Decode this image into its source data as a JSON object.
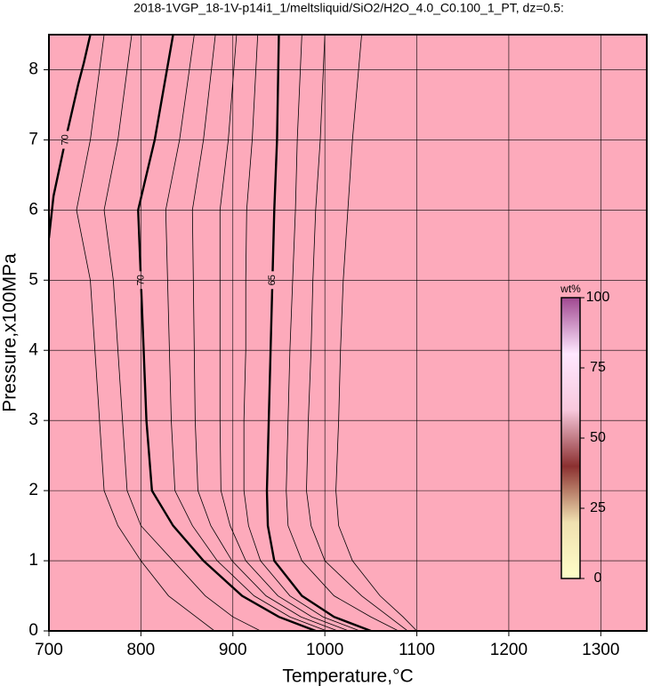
{
  "chart_data": {
    "type": "contour",
    "title": "2018-1VGP_18-1V-p14i1_1/meltsliquid/SiO2/H2O_4.0_C0.100_1_PT, dz=0.5:",
    "x_label": "Temperature,°C",
    "y_label": "Pressure,x100MPa",
    "xlim": [
      700,
      1350
    ],
    "xticks": [
      700,
      800,
      900,
      1000,
      1100,
      1200,
      1300
    ],
    "ylim": [
      0,
      8.5
    ],
    "yticks": [
      0,
      1,
      2,
      3,
      4,
      5,
      6,
      7,
      8
    ],
    "grid": true,
    "background": "#fdaabb",
    "contours": [
      {
        "level": 70,
        "bold": true,
        "x": [
          835,
          815,
          797,
          800,
          803,
          806,
          812,
          835,
          868,
          910,
          950,
          990
        ],
        "y": [
          8.5,
          7,
          6,
          5,
          4,
          3,
          2,
          1.5,
          1,
          0.5,
          0.2,
          0
        ]
      },
      {
        "x": [
          858,
          842,
          827,
          829,
          831,
          833,
          837,
          856,
          883,
          923,
          962,
          1002
        ],
        "y": [
          8.5,
          7,
          6,
          5,
          4,
          3,
          2,
          1.5,
          1,
          0.5,
          0.2,
          0
        ]
      },
      {
        "x": [
          881,
          868,
          856,
          857,
          858,
          859,
          862,
          876,
          899,
          936,
          974,
          1014
        ],
        "y": [
          8.5,
          7,
          6,
          5,
          4,
          3,
          2,
          1.5,
          1,
          0.5,
          0.2,
          0
        ]
      },
      {
        "x": [
          904,
          895,
          886,
          886,
          886,
          886,
          887,
          897,
          914,
          949,
          986,
          1026
        ],
        "y": [
          8.5,
          7,
          6,
          5,
          4,
          3,
          2,
          1.5,
          1,
          0.5,
          0.2,
          0
        ]
      },
      {
        "x": [
          927,
          921,
          915,
          914,
          914,
          912,
          912,
          917,
          930,
          962,
          998,
          1038
        ],
        "y": [
          8.5,
          7,
          6,
          5,
          4,
          3,
          2,
          1.5,
          1,
          0.5,
          0.2,
          0
        ]
      },
      {
        "level": 65,
        "bold": true,
        "x": [
          950,
          948,
          945,
          943,
          941,
          939,
          937,
          938,
          945,
          975,
          1010,
          1050
        ],
        "y": [
          8.5,
          7,
          6,
          5,
          4,
          3,
          2,
          1.5,
          1,
          0.5,
          0.2,
          0
        ]
      },
      {
        "x": [
          975,
          970,
          968,
          965,
          962,
          960,
          958,
          960,
          975,
          1010,
          1050,
          1080
        ],
        "y": [
          8.5,
          7,
          6,
          5,
          4,
          3,
          2,
          1.5,
          1,
          0.5,
          0.2,
          0
        ]
      },
      {
        "x": [
          1000,
          995,
          990,
          987,
          985,
          982,
          980,
          985,
          1000,
          1040,
          1070,
          1090
        ],
        "y": [
          8.5,
          7,
          6,
          5,
          4,
          3,
          2,
          1.5,
          1,
          0.5,
          0.2,
          0
        ]
      },
      {
        "x": [
          1040,
          1030,
          1025,
          1020,
          1017,
          1015,
          1012,
          1015,
          1030,
          1060,
          1085,
          1100
        ],
        "y": [
          8.5,
          7,
          6,
          5,
          4,
          3,
          2,
          1.5,
          1,
          0.5,
          0.2,
          0
        ]
      },
      {
        "x": [
          790,
          775,
          760,
          770,
          775,
          780,
          785,
          800,
          835,
          870,
          900,
          930
        ],
        "y": [
          8.5,
          7,
          6,
          5,
          4,
          3,
          2,
          1.5,
          1,
          0.5,
          0.2,
          0
        ]
      },
      {
        "x": [
          760,
          745,
          730,
          745,
          750,
          755,
          760,
          775,
          800,
          830,
          860,
          880
        ],
        "y": [
          8.5,
          7,
          6,
          5,
          4,
          3,
          2,
          1.5,
          1,
          0.5,
          0.2,
          0
        ]
      },
      {
        "level": 70,
        "bold": true,
        "x": [
          745,
          738,
          732,
          718,
          705,
          700
        ],
        "y": [
          8.5,
          8.1,
          7.8,
          7,
          6.2,
          5.6
        ]
      }
    ],
    "colorbar": {
      "title": "wt%",
      "lim": [
        0,
        100
      ],
      "ticks": [
        0,
        25,
        50,
        75,
        100
      ],
      "colors": [
        "#ffffc8",
        "#f0e0b0",
        "#8b3030",
        "#f8c8dc",
        "#ffe8ff",
        "#a04890"
      ]
    }
  }
}
